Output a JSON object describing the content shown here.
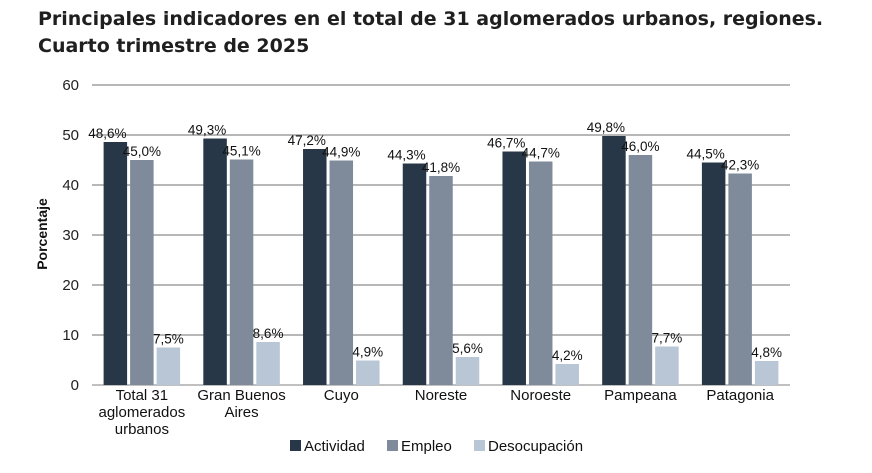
{
  "title_line1": "Principales indicadores en el total de 31 aglomerados urbanos, regiones.",
  "title_line2": "Cuarto trimestre de 2025",
  "chart_data": {
    "type": "bar",
    "title": "Principales indicadores en el total de 31 aglomerados urbanos, regiones. Cuarto trimestre de 2025",
    "ylabel": "Porcentaje",
    "xlabel": "",
    "ylim": [
      0,
      60
    ],
    "yticks": [
      0,
      10,
      20,
      30,
      40,
      50,
      60
    ],
    "grid": true,
    "legend_position": "bottom",
    "categories": [
      [
        "Total 31",
        "aglomerados",
        "urbanos"
      ],
      [
        "Gran Buenos",
        "Aires"
      ],
      [
        "Cuyo"
      ],
      [
        "Noreste"
      ],
      [
        "Noroeste"
      ],
      [
        "Pampeana"
      ],
      [
        "Patagonia"
      ]
    ],
    "series": [
      {
        "name": "Actividad",
        "color": "#283747",
        "values": [
          48.6,
          49.3,
          47.2,
          44.3,
          46.7,
          49.8,
          44.5
        ],
        "labels": [
          "48,6%",
          "49,3%",
          "47,2%",
          "44,3%",
          "46,7%",
          "49,8%",
          "44,5%"
        ]
      },
      {
        "name": "Empleo",
        "color": "#7f8b9b",
        "values": [
          45.0,
          45.1,
          44.9,
          41.8,
          44.7,
          46.0,
          42.3
        ],
        "labels": [
          "45,0%",
          "45,1%",
          "44,9%",
          "41,8%",
          "44,7%",
          "46,0%",
          "42,3%"
        ]
      },
      {
        "name": "Desocupación",
        "color": "#b8c6d6",
        "values": [
          7.5,
          8.6,
          4.9,
          5.6,
          4.2,
          7.7,
          4.8
        ],
        "labels": [
          "7,5%",
          "8,6%",
          "4,9%",
          "5,6%",
          "4,2%",
          "7,7%",
          "4,8%"
        ]
      }
    ]
  }
}
